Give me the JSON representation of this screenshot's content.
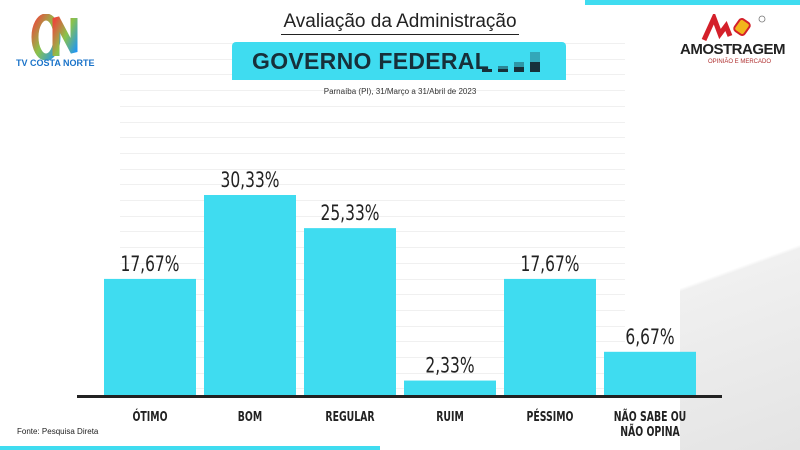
{
  "header": {
    "title": "Avaliação da Administração",
    "banner": "GOVERNO FEDERAL",
    "subtitle": "Parnaíba (PI), 31/Março a 31/Abril de 2023"
  },
  "logos": {
    "left_brand": "TV COSTA NORTE",
    "right_brand": "AMOSTRAGEM",
    "right_tagline": "OPINIÃO E MERCADO"
  },
  "footer": {
    "source": "Fonte: Pesquisa Direta"
  },
  "colors": {
    "bar": "#3fdcf0",
    "axis": "#222222",
    "banner_text": "#17303a"
  },
  "chart_data": {
    "type": "bar",
    "title": "Avaliação da Administração - Governo Federal",
    "categories": [
      "ÓTIMO",
      "BOM",
      "REGULAR",
      "RUIM",
      "PÉSSIMO",
      "NÃO SABE OU NÃO OPINA"
    ],
    "values": [
      17.67,
      30.33,
      25.33,
      2.33,
      17.67,
      6.67
    ],
    "data_labels": [
      "17,67%",
      "30,33%",
      "25,33%",
      "2,33%",
      "17,67%",
      "6,67%"
    ],
    "xlabel": "",
    "ylabel": "",
    "ylim": [
      0,
      31
    ],
    "grid": false,
    "legend": "none"
  }
}
